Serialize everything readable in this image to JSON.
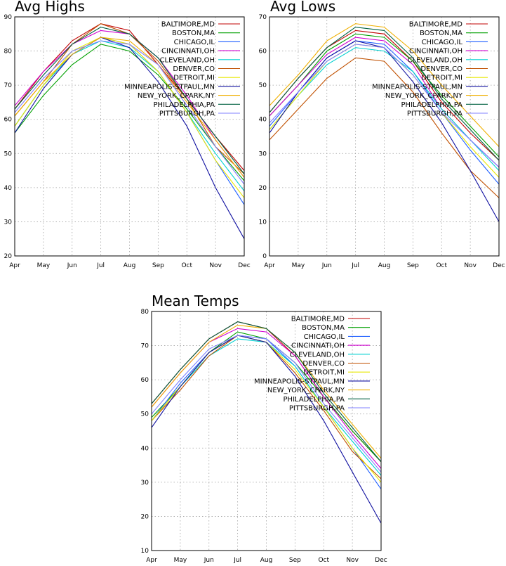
{
  "chart_data": [
    {
      "type": "line",
      "title": "Avg Highs",
      "categories": [
        "Apr",
        "May",
        "Jun",
        "Jul",
        "Aug",
        "Sep",
        "Oct",
        "Nov",
        "Dec"
      ],
      "ylim": [
        20,
        90
      ],
      "yticks": [
        20,
        30,
        40,
        50,
        60,
        70,
        80,
        90
      ],
      "grid": true,
      "legend_position": "top-right",
      "series": [
        {
          "name": "BALTIMORE,MD",
          "color": "#c00000",
          "values": [
            63,
            74,
            83,
            88,
            86,
            76,
            66,
            55,
            45
          ]
        },
        {
          "name": "BOSTON,MA",
          "color": "#00a000",
          "values": [
            56,
            67,
            76,
            82,
            80,
            73,
            63,
            52,
            42
          ]
        },
        {
          "name": "CHICAGO,IL",
          "color": "#2060ff",
          "values": [
            58,
            70,
            79,
            84,
            82,
            74,
            62,
            48,
            35
          ]
        },
        {
          "name": "CINCINNATI,OH",
          "color": "#d000d0",
          "values": [
            64,
            74,
            82,
            86,
            85,
            78,
            67,
            54,
            43
          ]
        },
        {
          "name": "CLEVELAND,OH",
          "color": "#00d0d0",
          "values": [
            58,
            70,
            79,
            83,
            81,
            74,
            62,
            50,
            39
          ]
        },
        {
          "name": "DENVER,CO",
          "color": "#c05000",
          "values": [
            61,
            71,
            82,
            88,
            85,
            77,
            66,
            52,
            44
          ]
        },
        {
          "name": "DETROIT,MI",
          "color": "#e8e800",
          "values": [
            58,
            70,
            80,
            84,
            82,
            74,
            62,
            48,
            37
          ]
        },
        {
          "name": "MINNEAPOLIS-STPAUL,MN",
          "color": "#1010a0",
          "values": [
            56,
            69,
            79,
            84,
            81,
            71,
            58,
            40,
            25
          ]
        },
        {
          "name": "NEW_YORK_CPARK,NY",
          "color": "#f0b000",
          "values": [
            61,
            71,
            79,
            84,
            83,
            76,
            65,
            54,
            43
          ]
        },
        {
          "name": "PHILADELPHIA,PA",
          "color": "#006040",
          "values": [
            63,
            73,
            82,
            87,
            85,
            78,
            66,
            55,
            44
          ]
        },
        {
          "name": "PITTSBURGH,PA",
          "color": "#8080ff",
          "values": [
            62,
            72,
            80,
            83,
            82,
            76,
            64,
            52,
            41
          ]
        }
      ]
    },
    {
      "type": "line",
      "title": "Avg Lows",
      "categories": [
        "Apr",
        "May",
        "Jun",
        "Jul",
        "Aug",
        "Sep",
        "Oct",
        "Nov",
        "Dec"
      ],
      "ylim": [
        0,
        70
      ],
      "yticks": [
        0,
        10,
        20,
        30,
        40,
        50,
        60,
        70
      ],
      "grid": true,
      "legend_position": "top-right",
      "series": [
        {
          "name": "BALTIMORE,MD",
          "color": "#c00000",
          "values": [
            42,
            52,
            61,
            66,
            65,
            57,
            45,
            36,
            28
          ]
        },
        {
          "name": "BOSTON,MA",
          "color": "#00a000",
          "values": [
            41,
            50,
            60,
            65,
            64,
            57,
            47,
            38,
            29
          ]
        },
        {
          "name": "CHICAGO,IL",
          "color": "#2060ff",
          "values": [
            38,
            48,
            58,
            63,
            62,
            54,
            42,
            31,
            21
          ]
        },
        {
          "name": "CINCINNATI,OH",
          "color": "#d000d0",
          "values": [
            41,
            50,
            59,
            64,
            63,
            56,
            43,
            34,
            26
          ]
        },
        {
          "name": "CLEVELAND,OH",
          "color": "#00d0d0",
          "values": [
            37,
            47,
            56,
            61,
            60,
            54,
            43,
            34,
            25
          ]
        },
        {
          "name": "DENVER,CO",
          "color": "#c05000",
          "values": [
            34,
            43,
            52,
            58,
            57,
            48,
            36,
            25,
            17
          ]
        },
        {
          "name": "DETROIT,MI",
          "color": "#e8e800",
          "values": [
            37,
            47,
            57,
            62,
            61,
            53,
            42,
            32,
            23
          ]
        },
        {
          "name": "MINNEAPOLIS-STPAUL,MN",
          "color": "#1010a0",
          "values": [
            36,
            48,
            58,
            63,
            61,
            51,
            39,
            25,
            10
          ]
        },
        {
          "name": "NEW_YORK_CPARK,NY",
          "color": "#f0b000",
          "values": [
            44,
            53,
            63,
            68,
            67,
            60,
            50,
            41,
            32
          ]
        },
        {
          "name": "PHILADELPHIA,PA",
          "color": "#006040",
          "values": [
            42,
            52,
            61,
            67,
            66,
            58,
            46,
            37,
            28
          ]
        },
        {
          "name": "PITTSBURGH,PA",
          "color": "#8080ff",
          "values": [
            39,
            48,
            57,
            62,
            61,
            53,
            42,
            34,
            26
          ]
        }
      ]
    },
    {
      "type": "line",
      "title": "Mean Temps",
      "categories": [
        "Apr",
        "May",
        "Jun",
        "Jul",
        "Aug",
        "Sep",
        "Oct",
        "Nov",
        "Dec"
      ],
      "ylim": [
        10,
        80
      ],
      "yticks": [
        10,
        20,
        30,
        40,
        50,
        60,
        70,
        80
      ],
      "grid": true,
      "legend_position": "top-right",
      "series": [
        {
          "name": "BALTIMORE,MD",
          "color": "#c00000",
          "values": [
            53,
            63,
            72,
            77,
            75,
            67,
            55,
            45,
            36
          ]
        },
        {
          "name": "BOSTON,MA",
          "color": "#00a000",
          "values": [
            49,
            58,
            68,
            74,
            72,
            65,
            55,
            45,
            36
          ]
        },
        {
          "name": "CHICAGO,IL",
          "color": "#2060ff",
          "values": [
            48,
            59,
            68,
            73,
            72,
            64,
            52,
            40,
            28
          ]
        },
        {
          "name": "CINCINNATI,OH",
          "color": "#d000d0",
          "values": [
            52,
            62,
            71,
            75,
            74,
            67,
            55,
            44,
            34
          ]
        },
        {
          "name": "CLEVELAND,OH",
          "color": "#00d0d0",
          "values": [
            48,
            58,
            67,
            72,
            71,
            64,
            52,
            42,
            32
          ]
        },
        {
          "name": "DENVER,CO",
          "color": "#c05000",
          "values": [
            48,
            57,
            67,
            73,
            71,
            62,
            51,
            39,
            31
          ]
        },
        {
          "name": "DETROIT,MI",
          "color": "#e8e800",
          "values": [
            48,
            58,
            68,
            73,
            71,
            63,
            52,
            40,
            30
          ]
        },
        {
          "name": "MINNEAPOLIS-STPAUL,MN",
          "color": "#1010a0",
          "values": [
            46,
            58,
            68,
            73,
            71,
            61,
            48,
            33,
            18
          ]
        },
        {
          "name": "NEW_YORK_CPARK,NY",
          "color": "#f0b000",
          "values": [
            52,
            62,
            71,
            76,
            75,
            68,
            57,
            47,
            37
          ]
        },
        {
          "name": "PHILADELPHIA,PA",
          "color": "#006040",
          "values": [
            53,
            63,
            72,
            77,
            75,
            68,
            56,
            46,
            36
          ]
        },
        {
          "name": "PITTSBURGH,PA",
          "color": "#8080ff",
          "values": [
            50,
            60,
            69,
            73,
            72,
            65,
            53,
            43,
            33
          ]
        }
      ]
    }
  ]
}
